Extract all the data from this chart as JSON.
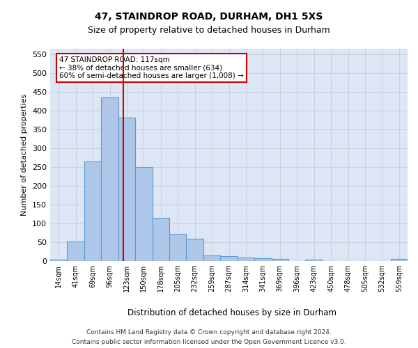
{
  "title1": "47, STAINDROP ROAD, DURHAM, DH1 5XS",
  "title2": "Size of property relative to detached houses in Durham",
  "xlabel": "Distribution of detached houses by size in Durham",
  "ylabel": "Number of detached properties",
  "categories": [
    "14sqm",
    "41sqm",
    "69sqm",
    "96sqm",
    "123sqm",
    "150sqm",
    "178sqm",
    "205sqm",
    "232sqm",
    "259sqm",
    "287sqm",
    "314sqm",
    "341sqm",
    "369sqm",
    "396sqm",
    "423sqm",
    "450sqm",
    "478sqm",
    "505sqm",
    "532sqm",
    "559sqm"
  ],
  "values": [
    3,
    52,
    265,
    435,
    382,
    250,
    115,
    72,
    60,
    15,
    13,
    10,
    7,
    6,
    0,
    4,
    0,
    0,
    0,
    0,
    5
  ],
  "bar_color": "#aec6e8",
  "bar_edge_color": "#5b9bd5",
  "bar_edge_width": 0.8,
  "grid_color": "#c8d0dc",
  "background_color": "#dce6f5",
  "annotation_text": "47 STAINDROP ROAD: 117sqm\n← 38% of detached houses are smaller (634)\n60% of semi-detached houses are larger (1,008) →",
  "annotation_box_color": "#ffffff",
  "annotation_box_edge": "#cc0000",
  "vline_color": "#cc0000",
  "ylim": [
    0,
    565
  ],
  "yticks": [
    0,
    50,
    100,
    150,
    200,
    250,
    300,
    350,
    400,
    450,
    500,
    550
  ],
  "footnote1": "Contains HM Land Registry data © Crown copyright and database right 2024.",
  "footnote2": "Contains public sector information licensed under the Open Government Licence v3.0."
}
